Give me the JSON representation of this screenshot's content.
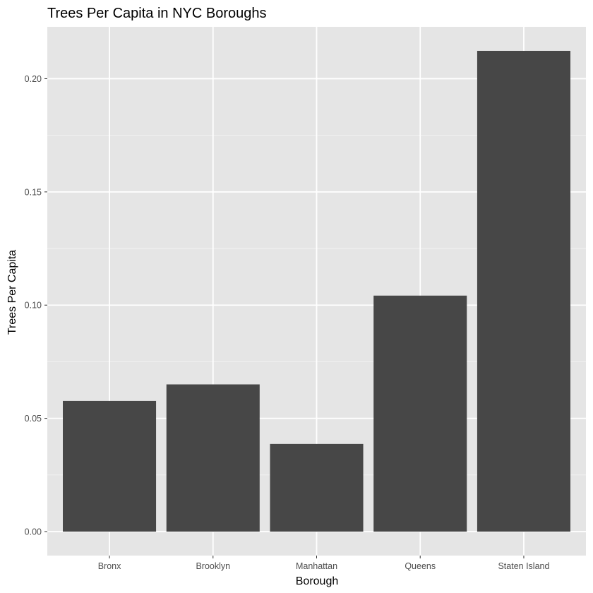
{
  "chart_data": {
    "type": "bar",
    "title": "Trees Per Capita in NYC Boroughs",
    "xlabel": "Borough",
    "ylabel": "Trees Per Capita",
    "categories": [
      "Bronx",
      "Brooklyn",
      "Manhattan",
      "Queens",
      "Staten Island"
    ],
    "values": [
      0.0577,
      0.065,
      0.0387,
      0.1042,
      0.2123
    ],
    "ylim": [
      -0.0106,
      0.2229
    ],
    "yticks": [
      0.0,
      0.05,
      0.1,
      0.15,
      0.2
    ],
    "ytick_labels": [
      "0.00",
      "0.05",
      "0.10",
      "0.15",
      "0.20"
    ],
    "grid": true,
    "legend": "none",
    "colors": {
      "bar": "#474747",
      "panel_background": "#e5e5e5",
      "grid_major": "#ffffff",
      "grid_minor": "#f2f2f2"
    }
  }
}
